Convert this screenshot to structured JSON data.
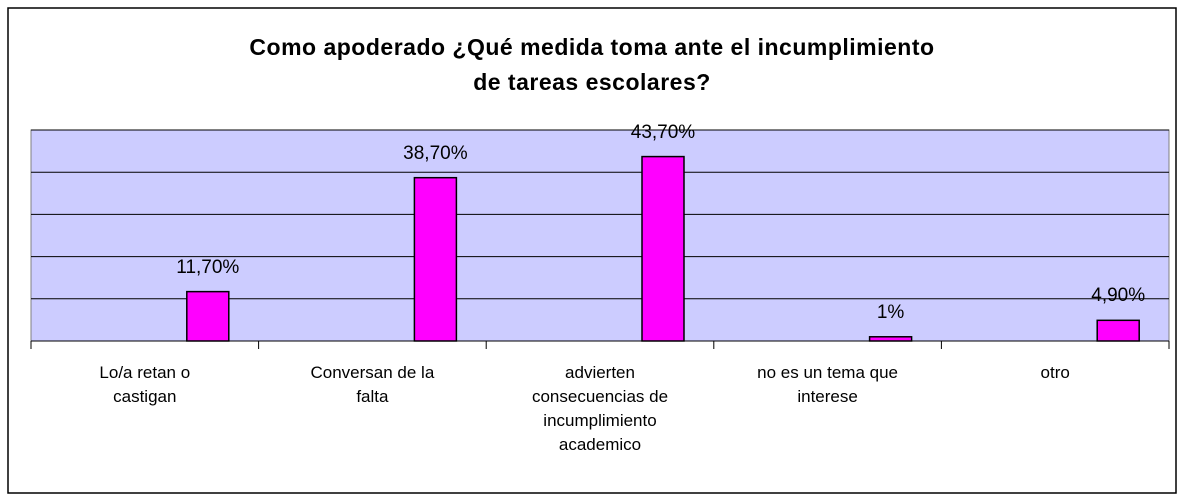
{
  "chart_data": {
    "type": "bar",
    "title": "Como apoderado ¿Qué medida toma ante el incumplimiento\nde tareas escolares?",
    "categories": [
      "Lo/a retan o\ncastigan",
      "Conversan de la\nfalta",
      "advierten\nconsecuencias de\nincumplimiento\nacademico",
      "no es un tema que\ninterese",
      "otro"
    ],
    "values": [
      11.7,
      38.7,
      43.7,
      1,
      4.9
    ],
    "value_labels": [
      "11,70%",
      "38,70%",
      "43,70%",
      "1%",
      "4,90%"
    ],
    "color": "#ff00ff",
    "plot_color": "#ccccff",
    "ylim": [
      0,
      50
    ],
    "yticks": [
      0,
      10,
      20,
      30,
      40,
      50
    ],
    "grid": true
  }
}
